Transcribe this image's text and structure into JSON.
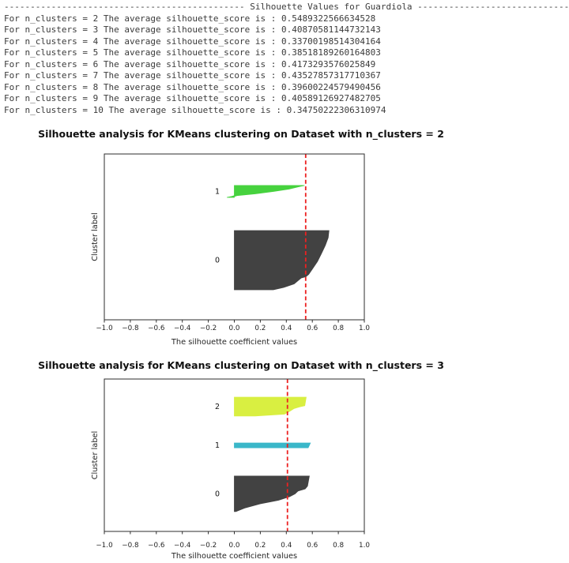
{
  "console": {
    "lines": [
      "---------------------------------------------- Silhouette Values for Guardiola ----------------------------------------------",
      "For n_clusters = 2 The average silhouette_score is : 0.5489322566634528",
      "For n_clusters = 3 The average silhouette_score is : 0.40870581144732143",
      "For n_clusters = 4 The average silhouette_score is : 0.33700198514304164",
      "For n_clusters = 5 The average silhouette_score is : 0.38518189260164803",
      "For n_clusters = 6 The average silhouette_score is : 0.4173293576025849",
      "For n_clusters = 7 The average silhouette_score is : 0.43527857317710367",
      "For n_clusters = 8 The average silhouette_score is : 0.39600224579490456",
      "For n_clusters = 9 The average silhouette_score is : 0.40589126927482705",
      "For n_clusters = 10 The average silhouette_score is : 0.34750222306310974"
    ]
  },
  "chart_data": [
    {
      "type": "area",
      "subtype": "silhouette-plot",
      "title": "Silhouette analysis for KMeans clustering on Dataset with n_clusters = 2",
      "xlabel": "The silhouette coefficient values",
      "ylabel": "Cluster label",
      "xlim": [
        -1.0,
        1.0
      ],
      "xtick_values": [
        -1.0,
        -0.8,
        -0.6,
        -0.4,
        -0.2,
        0.0,
        0.2,
        0.4,
        0.6,
        0.8,
        1.0
      ],
      "xtick_labels": [
        "−1.0",
        "−0.8",
        "−0.6",
        "−0.4",
        "−0.2",
        "0.0",
        "0.2",
        "0.4",
        "0.6",
        "0.8",
        "1.0"
      ],
      "avg_silhouette_score": 0.5489322566634528,
      "avg_line_color": "#ec2121",
      "clusters": [
        {
          "label": "1",
          "color": "#46d23e",
          "band_frac": [
            0.19,
            0.262
          ],
          "silhouette_range": [
            -0.057,
            0.54
          ],
          "profile": [
            [
              0,
              0.54
            ],
            [
              0.08,
              0.505
            ],
            [
              0.3,
              0.42
            ],
            [
              0.5,
              0.3
            ],
            [
              0.7,
              0.16
            ],
            [
              0.85,
              0.02
            ],
            [
              0.92,
              -0.02
            ],
            [
              1,
              -0.057
            ]
          ]
        },
        {
          "label": "0",
          "color": "#424242",
          "band_frac": [
            0.462,
            0.819
          ],
          "silhouette_range": [
            0.3,
            0.728
          ],
          "profile": [
            [
              0,
              0.728
            ],
            [
              0.12,
              0.722
            ],
            [
              0.25,
              0.7
            ],
            [
              0.38,
              0.672
            ],
            [
              0.52,
              0.64
            ],
            [
              0.65,
              0.6
            ],
            [
              0.74,
              0.572
            ],
            [
              0.78,
              0.55
            ],
            [
              0.8,
              0.515
            ],
            [
              0.9,
              0.46
            ],
            [
              0.96,
              0.38
            ],
            [
              1,
              0.3
            ]
          ]
        }
      ]
    },
    {
      "type": "area",
      "subtype": "silhouette-plot",
      "title": "Silhouette analysis for KMeans clustering on Dataset with n_clusters = 3",
      "xlabel": "The silhouette coefficient values",
      "ylabel": "Cluster label",
      "xlim": [
        -1.0,
        1.0
      ],
      "xtick_values": [
        -1.0,
        -0.8,
        -0.6,
        -0.4,
        -0.2,
        0.0,
        0.2,
        0.4,
        0.6,
        0.8,
        1.0
      ],
      "xtick_labels": [
        "−1.0",
        "−0.8",
        "−0.6",
        "−0.4",
        "−0.2",
        "0.0",
        "0.2",
        "0.4",
        "0.6",
        "0.8",
        "1.0"
      ],
      "avg_silhouette_score": 0.40870581144732143,
      "avg_line_color": "#ec2121",
      "clusters": [
        {
          "label": "2",
          "color": "#d9ef41",
          "band_frac": [
            0.119,
            0.243
          ],
          "silhouette_range": [
            0.16,
            0.553
          ],
          "profile": [
            [
              0,
              0.553
            ],
            [
              0.45,
              0.542
            ],
            [
              0.52,
              0.5
            ],
            [
              0.6,
              0.46
            ],
            [
              0.78,
              0.418
            ],
            [
              0.9,
              0.386
            ],
            [
              1,
              0.16
            ]
          ]
        },
        {
          "label": "1",
          "color": "#3ab7c9",
          "band_frac": [
            0.42,
            0.451
          ],
          "silhouette_range": [
            0.568,
            0.585
          ],
          "profile": [
            [
              0,
              0.585
            ],
            [
              1,
              0.568
            ]
          ]
        },
        {
          "label": "0",
          "color": "#424242",
          "band_frac": [
            0.637,
            0.87
          ],
          "silhouette_range": [
            0.012,
            0.577
          ],
          "profile": [
            [
              0,
              0.577
            ],
            [
              0.28,
              0.563
            ],
            [
              0.36,
              0.545
            ],
            [
              0.42,
              0.49
            ],
            [
              0.5,
              0.467
            ],
            [
              0.58,
              0.425
            ],
            [
              0.68,
              0.34
            ],
            [
              0.78,
              0.2
            ],
            [
              0.9,
              0.08
            ],
            [
              1,
              0.012
            ]
          ]
        }
      ]
    }
  ]
}
